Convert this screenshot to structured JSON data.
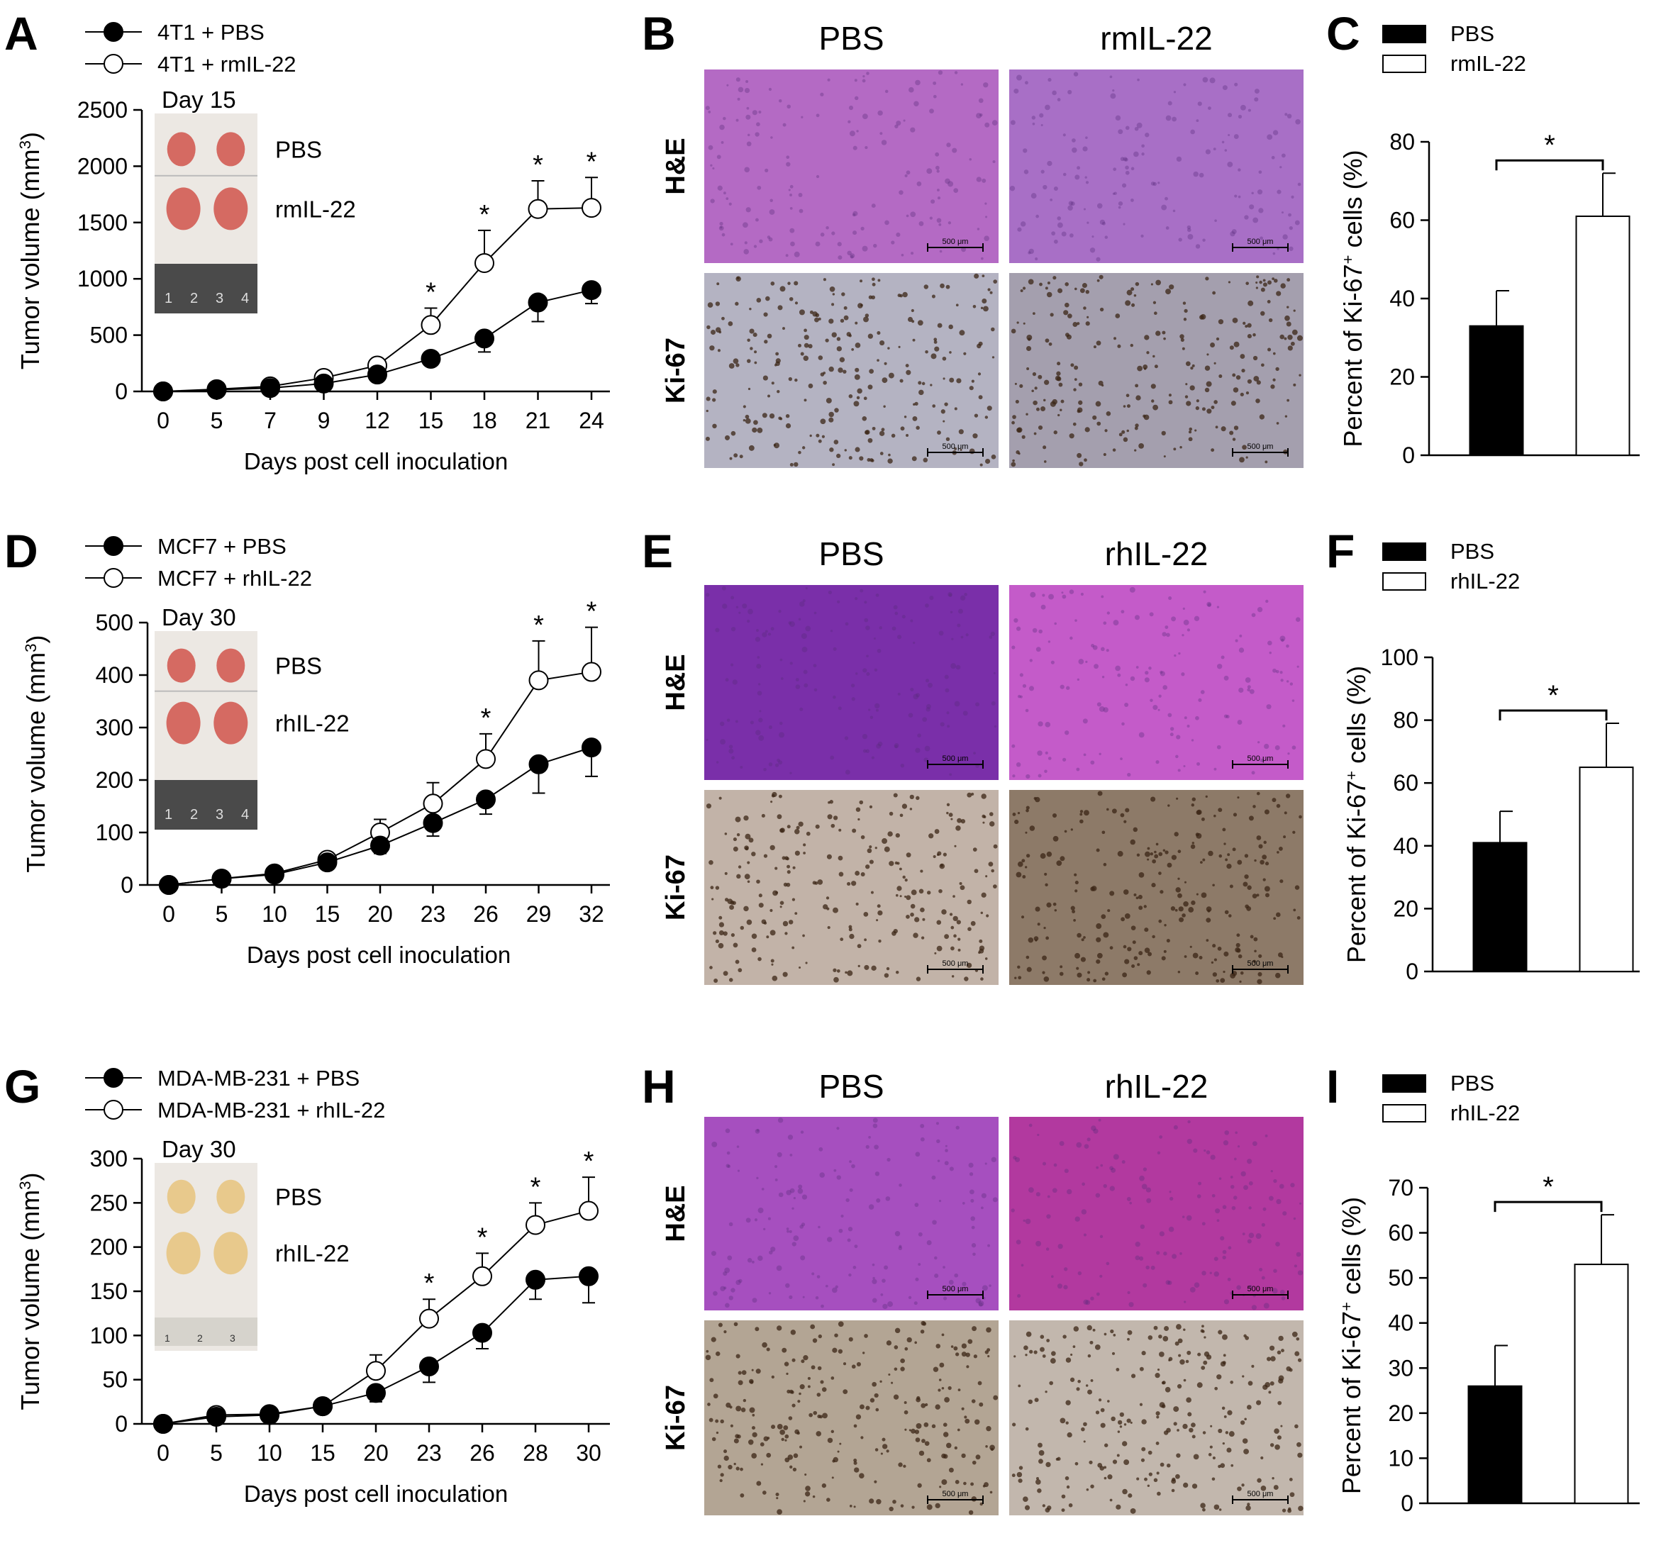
{
  "figure": {
    "panel_letters": [
      "A",
      "B",
      "C",
      "D",
      "E",
      "F",
      "G",
      "H",
      "I"
    ],
    "stain_labels": [
      "H&E",
      "Ki-67"
    ]
  },
  "chart_data": [
    {
      "panel": "A",
      "type": "line",
      "xlabel": "Days post cell inoculation",
      "ylabel": "Tumor volume (mm",
      "ylabel_sup": "3",
      "ylabel_end": ")",
      "categories": [
        "0",
        "5",
        "7",
        "9",
        "12",
        "15",
        "18",
        "21",
        "24"
      ],
      "ylim": [
        0,
        2500
      ],
      "yticks": [
        0,
        500,
        1000,
        1500,
        2000,
        2500
      ],
      "series": [
        {
          "name": "4T1 + PBS",
          "marker": "filled",
          "values": [
            0,
            15,
            30,
            70,
            150,
            290,
            470,
            790,
            900
          ],
          "err": [
            0,
            10,
            15,
            25,
            40,
            60,
            120,
            170,
            120
          ]
        },
        {
          "name": "4T1 + rmIL-22",
          "marker": "open",
          "values": [
            0,
            20,
            45,
            120,
            230,
            590,
            1140,
            1620,
            1630
          ],
          "err": [
            0,
            10,
            20,
            30,
            50,
            150,
            290,
            250,
            270
          ]
        }
      ],
      "significant": [
        "15",
        "18",
        "21",
        "24"
      ],
      "inset": {
        "day": "Day 15",
        "labels": [
          "PBS",
          "rmIL-22"
        ],
        "ruler": [
          "1",
          "2",
          "3",
          "4"
        ]
      }
    },
    {
      "panel": "C",
      "type": "bar",
      "ylabel": "Percent of Ki-67",
      "ylabel_sup": "+",
      "ylabel_end": " cells (%)",
      "categories": [
        "PBS",
        "rmIL-22"
      ],
      "values": [
        33,
        61
      ],
      "err": [
        9,
        11
      ],
      "ylim": [
        0,
        80
      ],
      "yticks": [
        0,
        20,
        40,
        60,
        80
      ],
      "legend": [
        "PBS",
        "rmIL-22"
      ],
      "significance": "*"
    },
    {
      "panel": "D",
      "type": "line",
      "xlabel": "Days post cell inoculation",
      "ylabel": "Tumor volume (mm",
      "ylabel_sup": "3",
      "ylabel_end": ")",
      "categories": [
        "0",
        "5",
        "10",
        "15",
        "20",
        "23",
        "26",
        "29",
        "32"
      ],
      "ylim": [
        0,
        500
      ],
      "yticks": [
        0,
        100,
        200,
        300,
        400,
        500
      ],
      "series": [
        {
          "name": "MCF7 + PBS",
          "marker": "filled",
          "values": [
            0,
            12,
            20,
            43,
            75,
            118,
            163,
            230,
            262
          ],
          "err": [
            0,
            5,
            5,
            10,
            15,
            25,
            28,
            55,
            55
          ]
        },
        {
          "name": "MCF7 + rhIL-22",
          "marker": "open",
          "values": [
            0,
            12,
            22,
            48,
            100,
            155,
            240,
            390,
            406
          ],
          "err": [
            0,
            5,
            6,
            10,
            25,
            40,
            48,
            75,
            85
          ]
        }
      ],
      "significant": [
        "26",
        "29",
        "32"
      ],
      "inset": {
        "day": "Day 30",
        "labels": [
          "PBS",
          "rhIL-22"
        ],
        "ruler": [
          "1",
          "2",
          "3",
          "4"
        ]
      }
    },
    {
      "panel": "F",
      "type": "bar",
      "ylabel": "Percent of Ki-67",
      "ylabel_sup": "+",
      "ylabel_end": " cells (%)",
      "categories": [
        "PBS",
        "rhIL-22"
      ],
      "values": [
        41,
        65
      ],
      "err": [
        10,
        14
      ],
      "ylim": [
        0,
        100
      ],
      "yticks": [
        0,
        20,
        40,
        60,
        80,
        100
      ],
      "legend": [
        "PBS",
        "rhIL-22"
      ],
      "significance": "*"
    },
    {
      "panel": "G",
      "type": "line",
      "xlabel": "Days post cell inoculation",
      "ylabel": "Tumor volume (mm",
      "ylabel_sup": "3",
      "ylabel_end": ")",
      "categories": [
        "0",
        "5",
        "10",
        "15",
        "20",
        "23",
        "26",
        "28",
        "30"
      ],
      "ylim": [
        0,
        300
      ],
      "yticks": [
        0,
        50,
        100,
        150,
        200,
        250,
        300
      ],
      "series": [
        {
          "name": "MDA-MB-231 + PBS",
          "marker": "filled",
          "values": [
            0,
            8,
            10,
            20,
            35,
            65,
            103,
            163,
            167
          ],
          "err": [
            0,
            3,
            3,
            4,
            10,
            18,
            18,
            22,
            30
          ]
        },
        {
          "name": "MDA-MB-231 + rhIL-22",
          "marker": "open",
          "values": [
            0,
            10,
            11,
            20,
            60,
            119,
            167,
            225,
            241
          ],
          "err": [
            0,
            3,
            3,
            4,
            18,
            22,
            26,
            25,
            38
          ]
        }
      ],
      "significant": [
        "23",
        "26",
        "28",
        "30"
      ],
      "inset": {
        "day": "Day 30",
        "labels": [
          "PBS",
          "rhIL-22"
        ],
        "ruler": [
          "1",
          "2",
          "3"
        ]
      }
    },
    {
      "panel": "I",
      "type": "bar",
      "ylabel": "Percent of Ki-67",
      "ylabel_sup": "+",
      "ylabel_end": " cells (%)",
      "categories": [
        "PBS",
        "rhIL-22"
      ],
      "values": [
        26,
        53
      ],
      "err": [
        9,
        11
      ],
      "ylim": [
        0,
        70
      ],
      "yticks": [
        0,
        10,
        20,
        30,
        40,
        50,
        60,
        70
      ],
      "legend": [
        "PBS",
        "rhIL-22"
      ],
      "significance": "*"
    }
  ],
  "histology": [
    {
      "panel": "B",
      "columns": [
        "PBS",
        "rmIL-22"
      ],
      "scale_bar": "500 μm",
      "he_colors": [
        "#b46ac4",
        "#a86fc6"
      ],
      "ki_colors": [
        "#b4b3c2",
        "#a49fae"
      ]
    },
    {
      "panel": "E",
      "columns": [
        "PBS",
        "rhIL-22"
      ],
      "scale_bar": "500 μm",
      "he_colors": [
        "#7a2fa9",
        "#c45bc9"
      ],
      "ki_colors": [
        "#c2b3a8",
        "#8d7a68"
      ]
    },
    {
      "panel": "H",
      "columns": [
        "PBS",
        "rhIL-22"
      ],
      "scale_bar": "500 μm",
      "he_colors": [
        "#a64fbf",
        "#b2399f"
      ],
      "ki_colors": [
        "#b3a594",
        "#c2b7ad"
      ]
    }
  ]
}
